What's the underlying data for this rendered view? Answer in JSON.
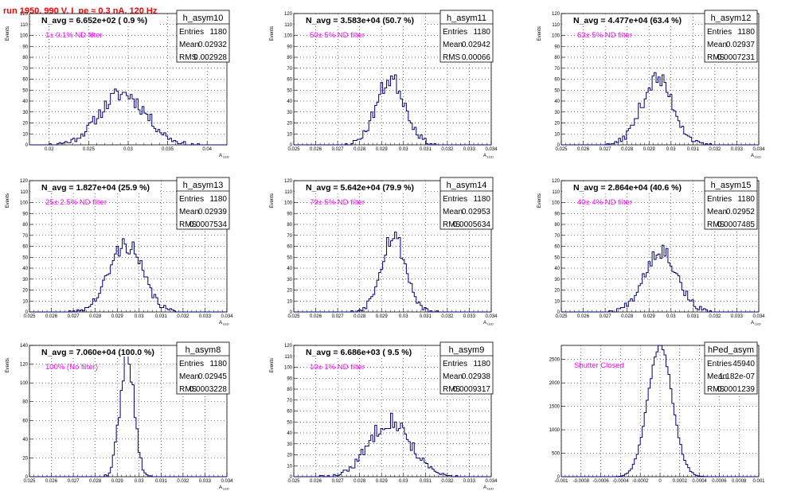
{
  "page_title": "run 1950,   990 V, I_pe ≈ 0.3 nA, 120 Hz",
  "chart_data": [
    {
      "type": "bar",
      "name": "h_asym10",
      "stats": {
        "entries": "1180",
        "mean": "0.02932",
        "rms": "0.002928"
      },
      "stat_labels": [
        "Entries",
        "Mean",
        "RMS"
      ],
      "navg": "N_avg = 6.652e+02 ( 0.9 %)",
      "filter": "1± 0.1% ND filter",
      "xlabel": "A",
      "xlabel_sub": "LED",
      "ylabel": "Events",
      "xlim": [
        0.0175,
        0.0425
      ],
      "xticks": [
        0.02,
        0.025,
        0.03,
        0.035,
        0.04
      ],
      "xtick_labels": [
        "0.02",
        "0.025",
        "0.03",
        "0.035",
        "0.04"
      ],
      "ylim": [
        0,
        120
      ],
      "yticks": [
        0,
        10,
        20,
        30,
        40,
        50,
        60,
        70,
        80,
        90,
        100,
        110,
        120
      ],
      "mean_value": 0.02932,
      "sigma": 0.002928,
      "peak": 47,
      "seed": 11
    },
    {
      "type": "bar",
      "name": "h_asym11",
      "stats": {
        "entries": "1180",
        "mean": "0.02942",
        "rms": "0.00066"
      },
      "stat_labels": [
        "Entries",
        "Mean",
        "RMS"
      ],
      "navg": "N_avg = 3.583e+04 (50.7 %)",
      "filter": "50± 5% ND filter",
      "xlabel": "A",
      "xlabel_sub": "LED",
      "ylabel": "Events",
      "xlim": [
        0.025,
        0.034
      ],
      "xticks": [
        0.025,
        0.026,
        0.027,
        0.028,
        0.029,
        0.03,
        0.031,
        0.032,
        0.033,
        0.034
      ],
      "xtick_labels": [
        "0.025",
        "0.026",
        "0.027",
        "0.028",
        "0.029",
        "0.03",
        "0.031",
        "0.032",
        "0.033",
        "0.034"
      ],
      "ylim": [
        0,
        120
      ],
      "yticks": [
        0,
        10,
        20,
        30,
        40,
        50,
        60,
        70,
        80,
        90,
        100,
        110,
        120
      ],
      "mean_value": 0.02942,
      "sigma": 0.00066,
      "peak": 60,
      "seed": 23
    },
    {
      "type": "bar",
      "name": "h_asym12",
      "stats": {
        "entries": "1180",
        "mean": "0.02937",
        "rms": "0.0007231"
      },
      "stat_labels": [
        "Entries",
        "Mean",
        "RMS"
      ],
      "navg": "N_avg = 4.477e+04 (63.4 %)",
      "filter": "63± 5% ND filter",
      "xlabel": "A",
      "xlabel_sub": "LED",
      "ylabel": "Events",
      "xlim": [
        0.025,
        0.034
      ],
      "xticks": [
        0.025,
        0.026,
        0.027,
        0.028,
        0.029,
        0.03,
        0.031,
        0.032,
        0.033,
        0.034
      ],
      "xtick_labels": [
        "0.025",
        "0.026",
        "0.027",
        "0.028",
        "0.029",
        "0.03",
        "0.031",
        "0.032",
        "0.033",
        "0.034"
      ],
      "ylim": [
        0,
        120
      ],
      "yticks": [
        0,
        10,
        20,
        30,
        40,
        50,
        60,
        70,
        80,
        90,
        100,
        110,
        120
      ],
      "mean_value": 0.02937,
      "sigma": 0.0007231,
      "peak": 60,
      "seed": 37
    },
    {
      "type": "bar",
      "name": "h_asym13",
      "stats": {
        "entries": "1180",
        "mean": "0.02939",
        "rms": "0.0007534"
      },
      "stat_labels": [
        "Entries",
        "Mean",
        "RMS"
      ],
      "navg": "N_avg = 1.827e+04 (25.9 %)",
      "filter": "25± 2.5% ND filter",
      "xlabel": "A",
      "xlabel_sub": "LED",
      "ylabel": "Events",
      "xlim": [
        0.025,
        0.034
      ],
      "xticks": [
        0.025,
        0.026,
        0.027,
        0.028,
        0.029,
        0.03,
        0.031,
        0.032,
        0.033,
        0.034
      ],
      "xtick_labels": [
        "0.025",
        "0.026",
        "0.027",
        "0.028",
        "0.029",
        "0.03",
        "0.031",
        "0.032",
        "0.033",
        "0.034"
      ],
      "ylim": [
        0,
        120
      ],
      "yticks": [
        0,
        10,
        20,
        30,
        40,
        50,
        60,
        70,
        80,
        90,
        100,
        110,
        120
      ],
      "mean_value": 0.02939,
      "sigma": 0.0007534,
      "peak": 62,
      "seed": 41
    },
    {
      "type": "bar",
      "name": "h_asym14",
      "stats": {
        "entries": "1180",
        "mean": "0.02953",
        "rms": "0.0005634"
      },
      "stat_labels": [
        "Entries",
        "Mean",
        "RMS"
      ],
      "navg": "N_avg = 5.642e+04 (79.9 %)",
      "filter": "79± 5% ND filter",
      "xlabel": "A",
      "xlabel_sub": "LED",
      "ylabel": "Events",
      "xlim": [
        0.025,
        0.034
      ],
      "xticks": [
        0.025,
        0.026,
        0.027,
        0.028,
        0.029,
        0.03,
        0.031,
        0.032,
        0.033,
        0.034
      ],
      "xtick_labels": [
        "0.025",
        "0.026",
        "0.027",
        "0.028",
        "0.029",
        "0.03",
        "0.031",
        "0.032",
        "0.033",
        "0.034"
      ],
      "ylim": [
        0,
        120
      ],
      "yticks": [
        0,
        10,
        20,
        30,
        40,
        50,
        60,
        70,
        80,
        90,
        100,
        110,
        120
      ],
      "mean_value": 0.02953,
      "sigma": 0.0005634,
      "peak": 70,
      "seed": 53
    },
    {
      "type": "bar",
      "name": "h_asym15",
      "stats": {
        "entries": "1180",
        "mean": "0.02952",
        "rms": "0.0007485"
      },
      "stat_labels": [
        "Entries",
        "Mean",
        "RMS"
      ],
      "navg": "N_avg = 2.864e+04 (40.6 %)",
      "filter": "40± 4% ND filter",
      "xlabel": "A",
      "xlabel_sub": "LED",
      "ylabel": "Events",
      "xlim": [
        0.025,
        0.034
      ],
      "xticks": [
        0.025,
        0.026,
        0.027,
        0.028,
        0.029,
        0.03,
        0.031,
        0.032,
        0.033,
        0.034
      ],
      "xtick_labels": [
        "0.025",
        "0.026",
        "0.027",
        "0.028",
        "0.029",
        "0.03",
        "0.031",
        "0.032",
        "0.033",
        "0.034"
      ],
      "ylim": [
        0,
        120
      ],
      "yticks": [
        0,
        10,
        20,
        30,
        40,
        50,
        60,
        70,
        80,
        90,
        100,
        110,
        120
      ],
      "mean_value": 0.02952,
      "sigma": 0.0007485,
      "peak": 57,
      "seed": 67
    },
    {
      "type": "bar",
      "name": "h_asym8",
      "stats": {
        "entries": "1180",
        "mean": "0.02945",
        "rms": "0.0003228"
      },
      "stat_labels": [
        "Entries",
        "Mean",
        "RMS"
      ],
      "navg": "N_avg = 7.060e+04 (100.0 %)",
      "filter": "100% (No filter)",
      "xlabel": "A",
      "xlabel_sub": "LED",
      "ylabel": "Events",
      "xlim": [
        0.025,
        0.034
      ],
      "xticks": [
        0.025,
        0.026,
        0.027,
        0.028,
        0.029,
        0.03,
        0.031,
        0.032,
        0.033,
        0.034
      ],
      "xtick_labels": [
        "0.025",
        "0.026",
        "0.027",
        "0.028",
        "0.029",
        "0.03",
        "0.031",
        "0.032",
        "0.033",
        "0.034"
      ],
      "ylim": [
        0,
        140
      ],
      "yticks": [
        0,
        20,
        40,
        60,
        80,
        100,
        120,
        140
      ],
      "mean_value": 0.02945,
      "sigma": 0.0003228,
      "peak": 130,
      "seed": 79
    },
    {
      "type": "bar",
      "name": "h_asym9",
      "stats": {
        "entries": "1180",
        "mean": "0.02938",
        "rms": "0.0009317"
      },
      "stat_labels": [
        "Entries",
        "Mean",
        "RMS"
      ],
      "navg": "N_avg = 6.686e+03 ( 9.5 %)",
      "filter": "10± 1% ND filter",
      "xlabel": "A",
      "xlabel_sub": "LED",
      "ylabel": "Events",
      "xlim": [
        0.025,
        0.034
      ],
      "xticks": [
        0.025,
        0.026,
        0.027,
        0.028,
        0.029,
        0.03,
        0.031,
        0.032,
        0.033,
        0.034
      ],
      "xtick_labels": [
        "0.025",
        "0.026",
        "0.027",
        "0.028",
        "0.029",
        "0.03",
        "0.031",
        "0.032",
        "0.033",
        "0.034"
      ],
      "ylim": [
        0,
        120
      ],
      "yticks": [
        0,
        10,
        20,
        30,
        40,
        50,
        60,
        70,
        80,
        90,
        100,
        110,
        120
      ],
      "mean_value": 0.02938,
      "sigma": 0.0009317,
      "peak": 52,
      "seed": 83
    },
    {
      "type": "bar",
      "name": "hPed_asym",
      "stats": {
        "entries": "45940",
        "mean": "1.182e-07",
        "rms": "0.0001239"
      },
      "stat_labels": [
        "Entries",
        "Mean",
        "RMS"
      ],
      "navg": "",
      "filter": "Shutter Closed",
      "xlabel": "",
      "xlabel_sub": "",
      "ylabel": "",
      "xlim": [
        -0.001,
        0.001
      ],
      "xticks": [
        -0.001,
        -0.0008,
        -0.0006,
        -0.0004,
        -0.0002,
        0,
        0.0002,
        0.0004,
        0.0006,
        0.0008,
        0.001
      ],
      "xtick_labels": [
        "-0.001",
        "-0.0008",
        "-0.0006",
        "-0.0004",
        "-0.0002",
        "0",
        "0.0002",
        "0.0004",
        "0.0006",
        "0.0008",
        "0.001"
      ],
      "ylim": [
        0,
        2800
      ],
      "yticks": [
        0,
        500,
        1000,
        1500,
        2000,
        2500
      ],
      "mean_value": 1.182e-07,
      "sigma": 0.0001239,
      "peak": 2780,
      "seed": 97
    }
  ]
}
